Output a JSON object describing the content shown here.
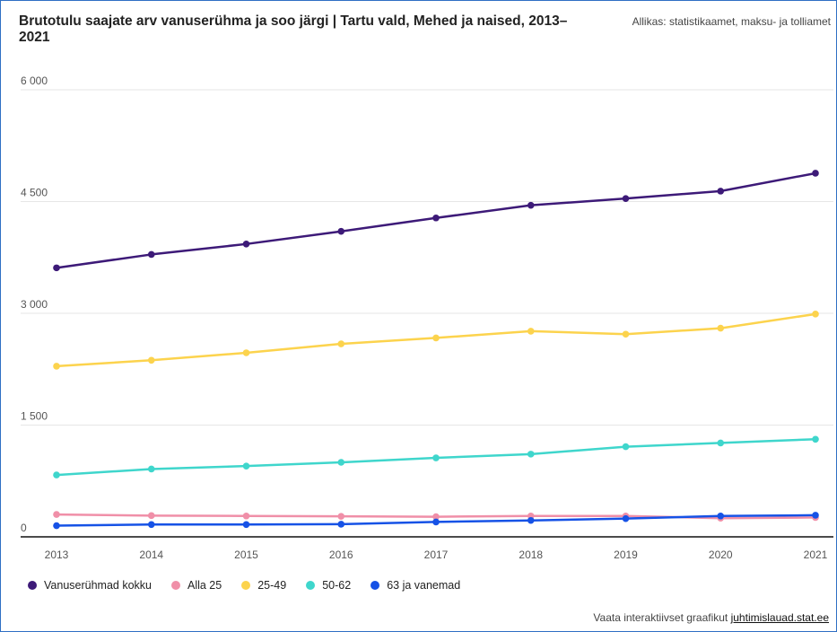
{
  "header": {
    "title": "Brutotulu saajate arv vanuserühma ja soo järgi | Tartu vald, Mehed ja naised, 2013–2021",
    "source": "Allikas: statistikaamet, maksu- ja tolliamet"
  },
  "footer": {
    "prefix": "Vaata interaktiivset graafikut ",
    "link": "juhtimislauad.stat.ee"
  },
  "chart_data": {
    "type": "line",
    "title": "Brutotulu saajate arv vanuserühma ja soo järgi | Tartu vald, Mehed ja naised, 2013–2021",
    "x": [
      "2013",
      "2014",
      "2015",
      "2016",
      "2017",
      "2018",
      "2019",
      "2020",
      "2021"
    ],
    "ylim": [
      0,
      6000
    ],
    "yticks": [
      0,
      1500,
      3000,
      4500,
      6000
    ],
    "ytick_labels": [
      "0",
      "1 500",
      "3 000",
      "4 500",
      "6 000"
    ],
    "grid": true,
    "legend_position": "bottom-left",
    "series": [
      {
        "name": "Vanuserühmad kokku",
        "color": "#3d1a78",
        "values": [
          3610,
          3790,
          3930,
          4100,
          4280,
          4450,
          4540,
          4640,
          4880
        ]
      },
      {
        "name": "Alla 25",
        "color": "#f08fa8",
        "values": [
          300,
          285,
          280,
          275,
          270,
          280,
          280,
          250,
          260
        ]
      },
      {
        "name": "25-49",
        "color": "#fcd34d",
        "values": [
          2290,
          2370,
          2470,
          2590,
          2670,
          2760,
          2720,
          2800,
          2990
        ]
      },
      {
        "name": "50-62",
        "color": "#3fd6cc",
        "values": [
          830,
          910,
          950,
          1000,
          1060,
          1110,
          1210,
          1260,
          1310
        ]
      },
      {
        "name": "63 ja vanemad",
        "color": "#1652e6",
        "values": [
          150,
          165,
          165,
          170,
          200,
          220,
          245,
          280,
          290
        ]
      }
    ]
  }
}
